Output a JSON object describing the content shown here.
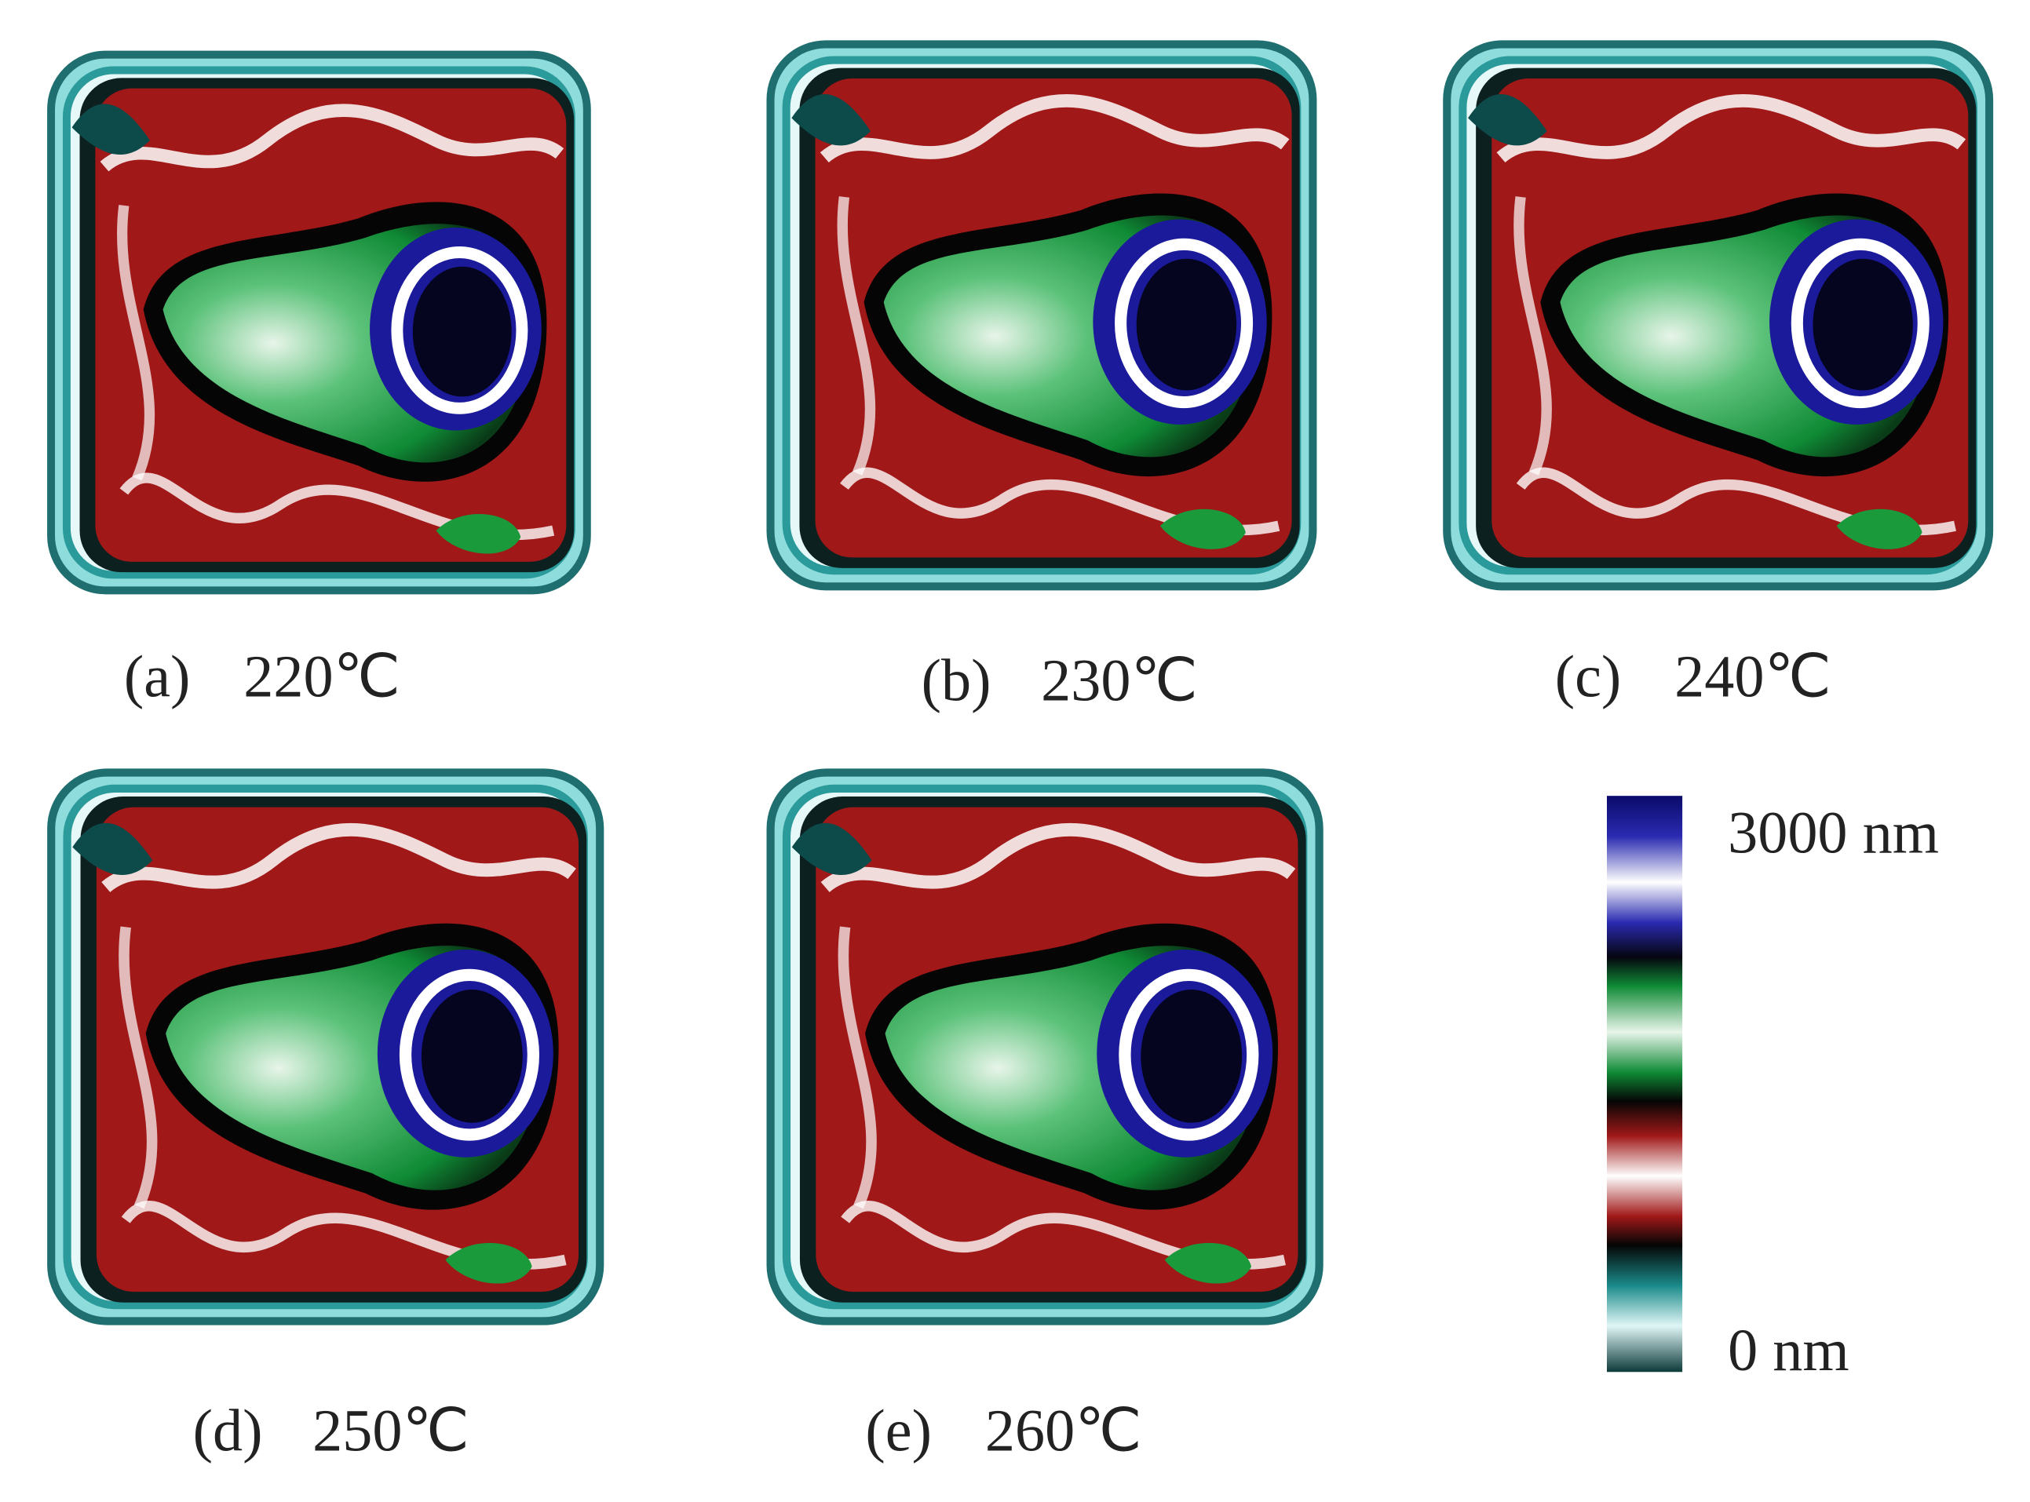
{
  "panels": [
    {
      "letter": "(a)",
      "temperature": "220℃"
    },
    {
      "letter": "(b)",
      "temperature": "230℃"
    },
    {
      "letter": "(c)",
      "temperature": "240℃"
    },
    {
      "letter": "(d)",
      "temperature": "250℃"
    },
    {
      "letter": "(e)",
      "temperature": "260℃"
    }
  ],
  "colorbar": {
    "max_label": "3000 nm",
    "min_label": "0 nm"
  }
}
